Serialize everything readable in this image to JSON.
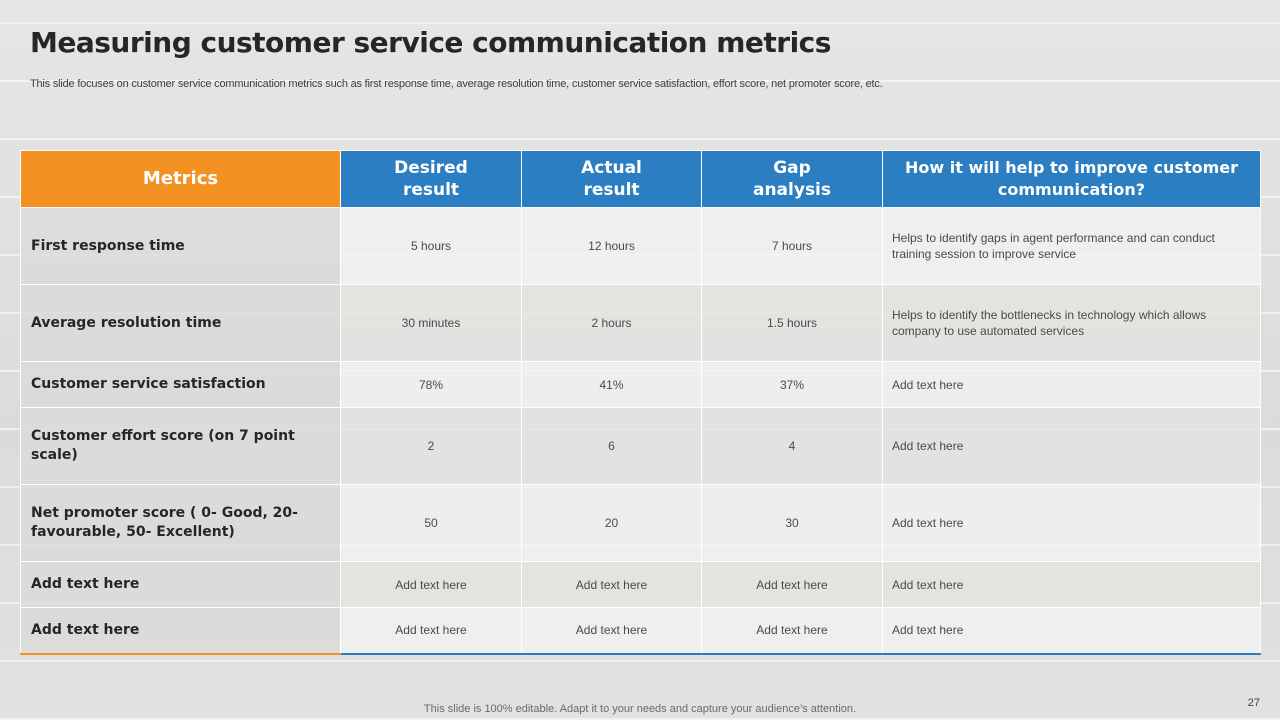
{
  "title": "Measuring customer service communication metrics",
  "subtitle": "This slide focuses on customer service communication metrics such as first response time, average resolution time, customer service satisfaction, effort score, net promoter score, etc.",
  "table": {
    "headers": {
      "metrics": "Metrics",
      "desired_line1": "Desired",
      "desired_line2": "result",
      "actual_line1": "Actual",
      "actual_line2": "result",
      "gap_line1": "Gap",
      "gap_line2": "analysis",
      "help_line1": "How it will help to improve customer",
      "help_line2": "communication?"
    },
    "rows": [
      {
        "metric": "First response time",
        "desired": "5 hours",
        "actual": "12 hours",
        "gap": "7 hours",
        "help": "Helps to identify gaps in agent performance  and can conduct training session to improve  service"
      },
      {
        "metric": "Average resolution time",
        "desired": "30 minutes",
        "actual": "2 hours",
        "gap": "1.5 hours",
        "help": "Helps to identify the bottlenecks in technology which allows company to use automated services"
      },
      {
        "metric": "Customer service satisfaction",
        "desired": "78%",
        "actual": "41%",
        "gap": "37%",
        "help": "Add text here"
      },
      {
        "metric": "Customer effort score (on 7 point scale)",
        "desired": "2",
        "actual": "6",
        "gap": "4",
        "help": "Add text here"
      },
      {
        "metric": "Net promoter score ( 0- Good, 20- favourable, 50- Excellent)",
        "desired": "50",
        "actual": "20",
        "gap": "30",
        "help": "Add text here"
      },
      {
        "metric": "Add text here",
        "desired": "Add text here",
        "actual": "Add text here",
        "gap": "Add text here",
        "help": "Add text here"
      },
      {
        "metric": "Add text here",
        "desired": "Add text here",
        "actual": "Add text here",
        "gap": "Add text here",
        "help": "Add text here"
      }
    ]
  },
  "footer": "This slide is 100% editable. Adapt it to your needs and capture your audience’s attention.",
  "page_number": "27",
  "colors": {
    "orange": "#f39222",
    "blue": "#2b7ec1"
  }
}
